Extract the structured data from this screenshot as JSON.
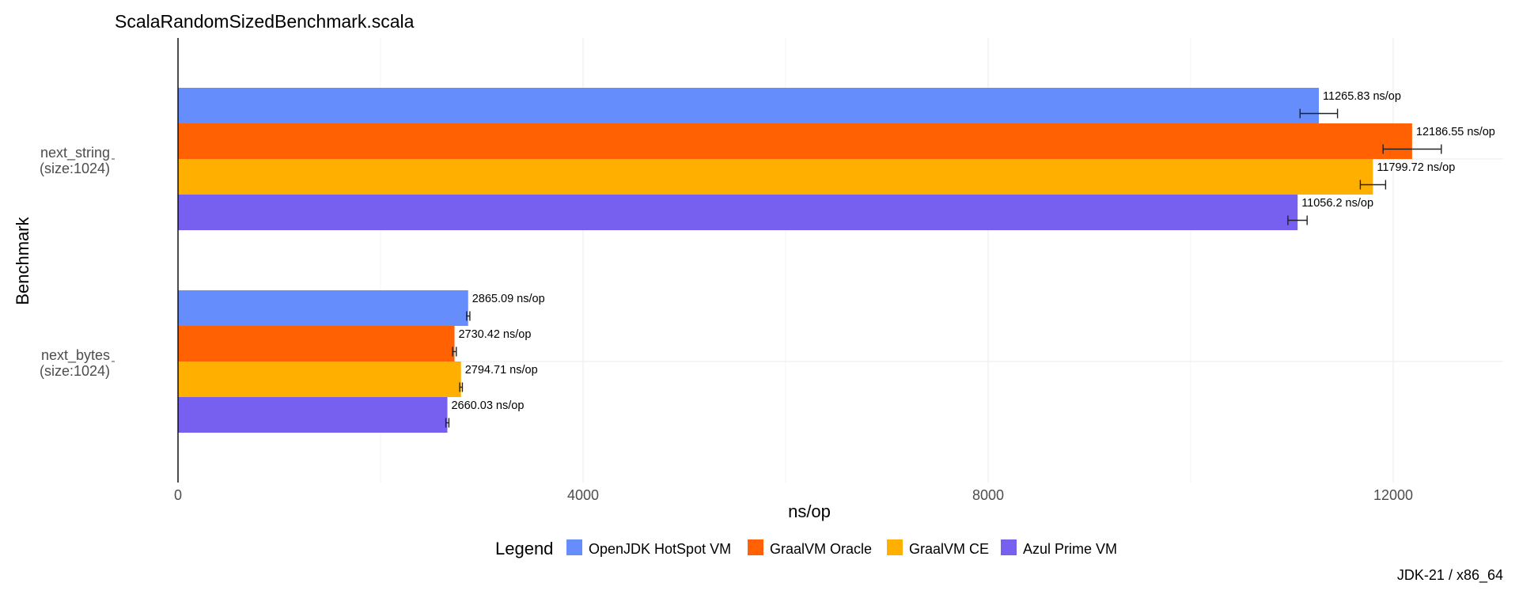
{
  "chart_data": {
    "type": "bar",
    "orientation": "horizontal",
    "title": "ScalaRandomSizedBenchmark.scala",
    "xlabel": "ns/op",
    "ylabel": "Benchmark",
    "xlim": [
      0,
      13100
    ],
    "x_ticks": [
      0,
      4000,
      8000,
      12000
    ],
    "x_tick_labels": [
      "0",
      "4000",
      "8000",
      "12000"
    ],
    "grid": true,
    "legend_title": "Legend",
    "legend_position": "bottom",
    "caption": "JDK-21 / x86_64",
    "categories": [
      {
        "line1": "next_string",
        "line2": "(size:1024)"
      },
      {
        "line1": "next_bytes",
        "line2": "(size:1024)"
      }
    ],
    "series": [
      {
        "name": "OpenJDK HotSpot VM",
        "color": "#658dfc",
        "values": [
          11265.83,
          2865.09
        ],
        "err_low": [
          11080,
          2850
        ],
        "err_high": [
          11450,
          2882
        ],
        "labels": [
          "11265.83 ns/op",
          "2865.09 ns/op"
        ]
      },
      {
        "name": "GraalVM Oracle",
        "color": "#ff6103",
        "values": [
          12186.55,
          2730.42
        ],
        "err_low": [
          11900,
          2712
        ],
        "err_high": [
          12475,
          2748
        ],
        "labels": [
          "12186.55 ns/op",
          "2730.42 ns/op"
        ]
      },
      {
        "name": "GraalVM CE",
        "color": "#feaf00",
        "values": [
          11799.72,
          2794.71
        ],
        "err_low": [
          11675,
          2782
        ],
        "err_high": [
          11925,
          2808
        ],
        "labels": [
          "11799.72 ns/op",
          "2794.71 ns/op"
        ]
      },
      {
        "name": "Azul Prime VM",
        "color": "#775ff0",
        "values": [
          11056.2,
          2660.03
        ],
        "err_low": [
          10960,
          2645
        ],
        "err_high": [
          11150,
          2675
        ],
        "labels": [
          "11056.2 ns/op",
          "2660.03 ns/op"
        ]
      }
    ]
  }
}
